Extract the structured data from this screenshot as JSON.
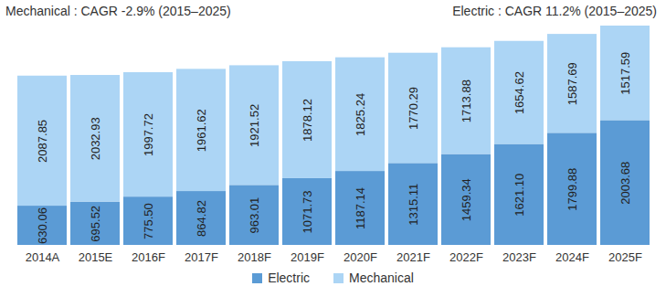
{
  "chart_data": {
    "type": "bar",
    "stacked": true,
    "annotations": [
      "Mechanical : CAGR -2.9% (2015–2025)",
      "Electric : CAGR 11.2% (2015–2025)"
    ],
    "categories": [
      "2014A",
      "2015E",
      "2016F",
      "2017F",
      "2018F",
      "2019F",
      "2020F",
      "2021F",
      "2022F",
      "2023F",
      "2024F",
      "2025F"
    ],
    "series": [
      {
        "name": "Electric",
        "color": "#5b9bd5",
        "values": [
          630.06,
          695.52,
          775.5,
          864.82,
          963.01,
          1071.73,
          1187.14,
          1315.11,
          1459.34,
          1621.1,
          1799.88,
          2003.68
        ],
        "value_labels": [
          "630.06",
          "695.52",
          "775.50",
          "864.82",
          "963.01",
          "1071.73",
          "1187.14",
          "1315.11",
          "1459.34",
          "1621.10",
          "1799.88",
          "2003.68"
        ]
      },
      {
        "name": "Mechanical",
        "color": "#acd5f5",
        "values": [
          2087.85,
          2032.93,
          1997.72,
          1961.62,
          1921.52,
          1878.12,
          1825.24,
          1770.29,
          1713.88,
          1654.62,
          1587.69,
          1517.59
        ],
        "value_labels": [
          "2087.85",
          "2032.93",
          "1997.72",
          "1961.62",
          "1921.52",
          "1878.12",
          "1825.24",
          "1770.29",
          "1713.88",
          "1654.62",
          "1587.69",
          "1517.59"
        ]
      }
    ],
    "data_labels": true,
    "tick_labels": "x",
    "legend": "bottom",
    "grid": false
  }
}
